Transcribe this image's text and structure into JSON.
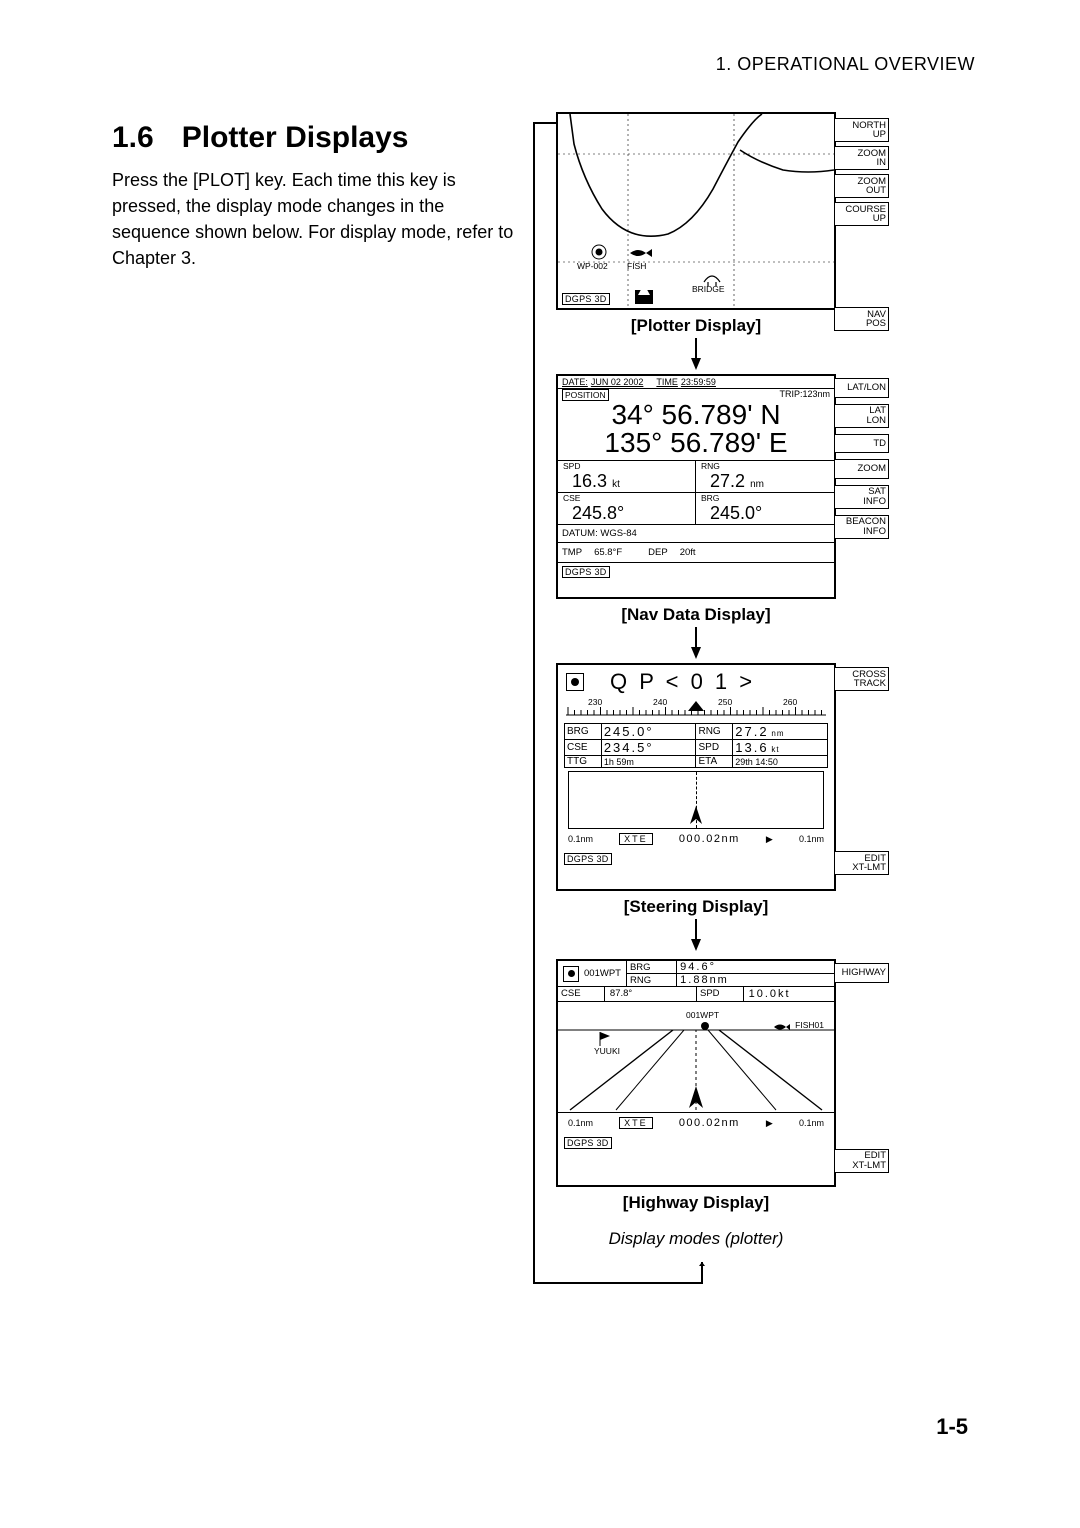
{
  "header": {
    "chapter": "1. OPERATIONAL OVERVIEW"
  },
  "section": {
    "number": "1.6",
    "title": "Plotter Displays"
  },
  "body": "Press the [PLOT] key. Each time this key is pressed, the display mode changes in the sequence shown below. For display mode, refer to Chapter 3.",
  "page_number": "1-5",
  "fig_caption": "Display modes (plotter)",
  "captions": {
    "plotter": "[Plotter Display]",
    "nav": "[Nav Data Display]",
    "steer": "[Steering Display]",
    "hwy": "[Highway Display]"
  },
  "plotter": {
    "softkeys": [
      {
        "l1": "NORTH",
        "l2": "UP"
      },
      {
        "l1": "ZOOM",
        "l2": "IN"
      },
      {
        "l1": "ZOOM",
        "l2": "OUT"
      },
      {
        "l1": "COURSE",
        "l2": "UP"
      },
      {
        "l1": "NAV",
        "l2": "POS"
      }
    ],
    "marks": {
      "wp": "WP-002",
      "fish": "FISH",
      "bridge": "BRIDGE"
    },
    "dgps": "DGPS 3D"
  },
  "nav": {
    "softkeys": [
      {
        "l1": "LAT/LON",
        "l2": ""
      },
      {
        "l1": "LAT",
        "l2": "LON"
      },
      {
        "l1": "TD",
        "l2": ""
      },
      {
        "l1": "ZOOM",
        "l2": ""
      },
      {
        "l1": "SAT",
        "l2": "INFO"
      },
      {
        "l1": "BEACON",
        "l2": "INFO"
      }
    ],
    "date_label": "DATE:",
    "date": "JUN 02 2002",
    "time_label": "TIME",
    "time": "23:59:59",
    "trip": "TRIP:123nm",
    "pos_label": "POSITION",
    "lat": "34° 56.789' N",
    "lon": "135° 56.789' E",
    "spd_label": "SPD",
    "spd": "16.3",
    "spd_unit": "kt",
    "rng_label": "RNG",
    "rng": "27.2",
    "rng_unit": "nm",
    "cse_label": "CSE",
    "cse": "245.8°",
    "brg_label": "BRG",
    "brg": "245.0°",
    "datum": "DATUM: WGS-84",
    "tmp_label": "TMP",
    "tmp": "65.8°F",
    "dep_label": "DEP",
    "dep": "20ft",
    "dgps": "DGPS 3D"
  },
  "steer": {
    "softkeys": [
      {
        "l1": "CROSS",
        "l2": "TRACK"
      },
      {
        "l1": "EDIT",
        "l2": "XT-LMT"
      }
    ],
    "qp": "Q P < 0 1 >",
    "compass_ticks": [
      "230",
      "240",
      "250",
      "260"
    ],
    "brg_label": "BRG",
    "brg": "245.0°",
    "rng_label": "RNG",
    "rng": "27.2",
    "rng_unit": "nm",
    "cse_label": "CSE",
    "cse": "234.5°",
    "spd_label": "SPD",
    "spd": "13.6",
    "spd_unit": "kt",
    "ttg_label": "TTG",
    "ttg": "1h 59m",
    "eta_label": "ETA",
    "eta": "29th 14:50",
    "limit": "0.1nm",
    "xte_label": "XTE",
    "xte": "000.02nm",
    "dgps": "DGPS 3D"
  },
  "hwy": {
    "softkeys": [
      {
        "l1": "HIGHWAY",
        "l2": ""
      },
      {
        "l1": "EDIT",
        "l2": "XT-LMT"
      }
    ],
    "wpt": "001WPT",
    "brg_label": "BRG",
    "brg": "94.6°",
    "rng_label": "RNG",
    "rng": "1.88nm",
    "cse_label": "CSE",
    "cse": "87.8°",
    "spd_label": "SPD",
    "spd": "10.0kt",
    "yuuki": "YUUKI",
    "wpt2": "001WPT",
    "fish": "FISH01",
    "limit": "0.1nm",
    "xte_label": "XTE",
    "xte": "000.02nm",
    "dgps": "DGPS 3D"
  },
  "colors": {
    "ink": "#000000",
    "bg": "#ffffff"
  }
}
